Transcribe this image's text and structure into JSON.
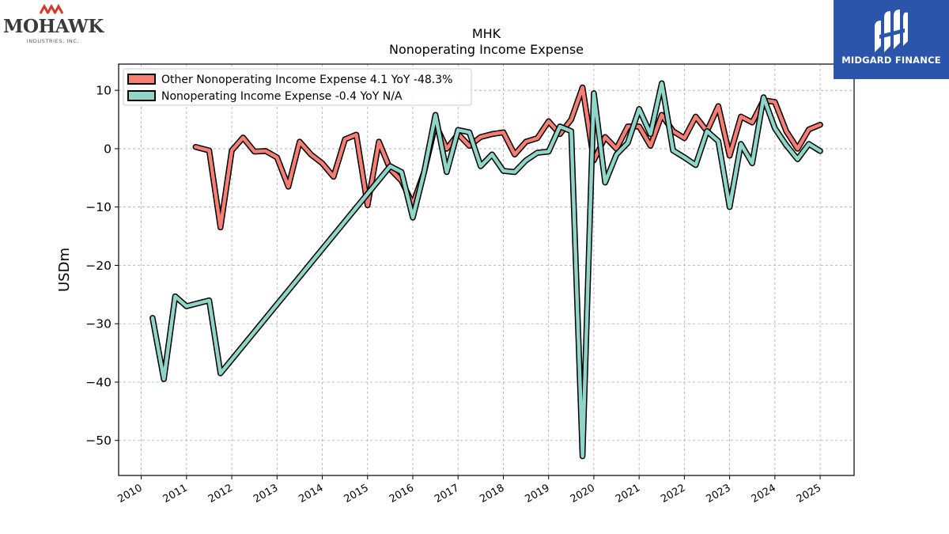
{
  "branding": {
    "left_logo": {
      "name": "MOHAWK",
      "subtitle": "INDUSTRIES, INC.",
      "icon": "mohawk-chevrons-icon"
    },
    "right_logo": {
      "name": "MIDGARD FINANCE",
      "icon": "midgard-m-icon",
      "background": "#2a55aa"
    }
  },
  "chart_data": {
    "type": "line",
    "title": "MHK",
    "subtitle": "Nonoperating Income Expense",
    "xlabel": "",
    "ylabel": "USDm",
    "xlim": [
      2009.5,
      2025.75
    ],
    "ylim": [
      -56,
      14.5
    ],
    "x_ticks": [
      "2010",
      "2011",
      "2012",
      "2013",
      "2014",
      "2015",
      "2016",
      "2017",
      "2018",
      "2019",
      "2020",
      "2021",
      "2022",
      "2023",
      "2024",
      "2025"
    ],
    "y_ticks": [
      10,
      0,
      -10,
      -20,
      -30,
      -40,
      -50
    ],
    "grid": true,
    "legend_position": "top-left",
    "series": [
      {
        "name": "Other Nonoperating Income Expense  4.1 YoY -48.3%",
        "color": "#f47f72",
        "x": [
          2011.2,
          2011.5,
          2011.75,
          2012.0,
          2012.25,
          2012.5,
          2012.75,
          2013.0,
          2013.25,
          2013.5,
          2013.75,
          2014.0,
          2014.25,
          2014.5,
          2014.75,
          2015.0,
          2015.25,
          2015.5,
          2015.75,
          2016.0,
          2016.25,
          2016.5,
          2016.75,
          2017.0,
          2017.25,
          2017.5,
          2017.75,
          2018.0,
          2018.25,
          2018.5,
          2018.75,
          2019.0,
          2019.25,
          2019.5,
          2019.75,
          2020.0,
          2020.25,
          2020.5,
          2020.75,
          2021.0,
          2021.25,
          2021.5,
          2021.75,
          2022.0,
          2022.25,
          2022.5,
          2022.75,
          2023.0,
          2023.25,
          2023.5,
          2023.75,
          2024.0,
          2024.25,
          2024.5,
          2024.75,
          2025.0
        ],
        "y": [
          0.3,
          -0.3,
          -13.5,
          -0.3,
          1.9,
          -0.5,
          -0.4,
          -1.5,
          -6.5,
          1.2,
          -1.0,
          -2.5,
          -4.8,
          1.6,
          2.4,
          -9.7,
          1.2,
          -3.5,
          -5.5,
          -9.5,
          -4.0,
          4.2,
          0.0,
          2.5,
          0.5,
          2.0,
          2.5,
          2.8,
          -1.0,
          1.2,
          1.8,
          4.7,
          2.5,
          5.0,
          10.5,
          -2.0,
          2.0,
          0.0,
          3.8,
          3.8,
          0.5,
          5.8,
          3.0,
          1.8,
          5.5,
          3.0,
          7.3,
          -1.2,
          5.5,
          4.5,
          8.3,
          8.0,
          3.0,
          0.0,
          3.3,
          4.1
        ]
      },
      {
        "name": "Nonoperating Income Expense  -0.4 YoY N/A",
        "color": "#8fd5c8",
        "x": [
          2010.25,
          2010.5,
          2010.75,
          2011.0,
          2011.5,
          2011.75,
          2015.5,
          2015.75,
          2016.0,
          2016.25,
          2016.5,
          2016.75,
          2017.0,
          2017.25,
          2017.5,
          2017.75,
          2018.0,
          2018.25,
          2018.5,
          2018.75,
          2019.0,
          2019.25,
          2019.5,
          2019.75,
          2020.0,
          2020.25,
          2020.5,
          2020.75,
          2021.0,
          2021.25,
          2021.5,
          2021.75,
          2022.0,
          2022.25,
          2022.5,
          2022.75,
          2023.0,
          2023.25,
          2023.5,
          2023.75,
          2024.0,
          2024.25,
          2024.5,
          2024.75,
          2025.0
        ],
        "y": [
          -29.0,
          -39.5,
          -25.3,
          -27.0,
          -26.0,
          -38.5,
          -3.0,
          -4.0,
          -11.8,
          -4.0,
          5.8,
          -4.0,
          3.2,
          2.8,
          -3.0,
          -1.0,
          -3.8,
          -4.0,
          -2.0,
          -0.7,
          -0.5,
          3.8,
          3.0,
          -52.7,
          9.5,
          -5.8,
          -1.0,
          1.0,
          6.8,
          2.5,
          11.2,
          -0.3,
          -1.5,
          -2.8,
          3.0,
          1.3,
          -10.0,
          0.8,
          -2.5,
          8.8,
          3.5,
          0.6,
          -1.8,
          0.8,
          -0.4
        ]
      }
    ]
  }
}
